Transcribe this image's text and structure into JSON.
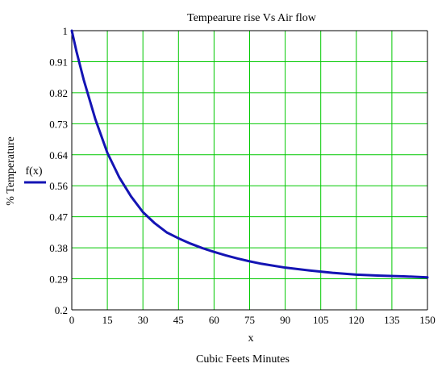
{
  "chart_data": {
    "type": "line",
    "title": "Tempearure rise Vs Air flow",
    "xlabel": "x",
    "xlabel2": "Cubic Feets Minutes",
    "ylabel": "% Temperature",
    "xlim": [
      0,
      150
    ],
    "ylim": [
      0.2,
      1
    ],
    "grid": true,
    "legend": {
      "position": "left",
      "entries": [
        "f(x)"
      ]
    },
    "x_ticks": [
      "0",
      "15",
      "30",
      "45",
      "60",
      "75",
      "90",
      "105",
      "120",
      "135",
      "150"
    ],
    "y_ticks": [
      "0.2",
      "0.29",
      "0.38",
      "0.47",
      "0.56",
      "0.64",
      "0.73",
      "0.82",
      "0.91",
      "1"
    ],
    "series": [
      {
        "name": "f(x)",
        "color": "#1414b4",
        "x": [
          0,
          2,
          5,
          10,
          15,
          20,
          25,
          30,
          35,
          40,
          45,
          50,
          55,
          60,
          65,
          70,
          75,
          80,
          90,
          100,
          110,
          120,
          130,
          140,
          150
        ],
        "y": [
          1.0,
          0.94,
          0.86,
          0.745,
          0.65,
          0.58,
          0.525,
          0.48,
          0.448,
          0.422,
          0.405,
          0.39,
          0.377,
          0.366,
          0.356,
          0.347,
          0.339,
          0.332,
          0.321,
          0.313,
          0.306,
          0.301,
          0.298,
          0.296,
          0.293
        ]
      }
    ]
  },
  "colors": {
    "grid": "#00c800",
    "axis": "#000000",
    "series": "#1414b4"
  }
}
